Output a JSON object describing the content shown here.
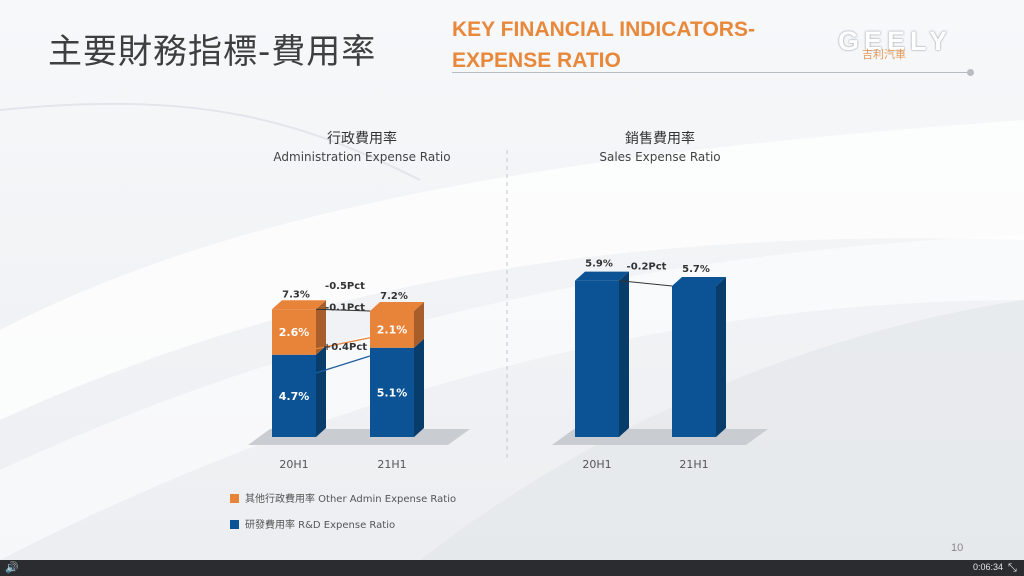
{
  "slide": {
    "title_cn": "主要財務指標-費用率",
    "title_en_line1": "KEY FINANCIAL INDICATORS-",
    "title_en_line2": "EXPENSE RATIO",
    "logo_text": "GEELY",
    "logo_sub": "吉利汽車",
    "page_number": "10"
  },
  "colors": {
    "orange": "#e8833a",
    "blue": "#0b5394",
    "title_orange": "#e8883a"
  },
  "legend": [
    {
      "label": "其他行政費用率 Other Admin Expense Ratio",
      "color": "#e8833a"
    },
    {
      "label": "研發費用率 R&D Expense Ratio",
      "color": "#0b5394"
    }
  ],
  "player": {
    "time": "0:06:34",
    "speaker_icon": "speaker-icon",
    "fullscreen_icon": "fullscreen-icon"
  },
  "chart_data": [
    {
      "type": "bar",
      "stacked": true,
      "title": "行政費用率",
      "subtitle": "Administration Expense Ratio",
      "categories": [
        "20H1",
        "21H1"
      ],
      "series": [
        {
          "name": "研發費用率 R&D Expense Ratio",
          "values": [
            4.7,
            5.1
          ],
          "labels": [
            "4.7%",
            "5.1%"
          ]
        },
        {
          "name": "其他行政費用率 Other Admin Expense Ratio",
          "values": [
            2.6,
            2.1
          ],
          "labels": [
            "2.6%",
            "2.1%"
          ]
        }
      ],
      "totals": [
        7.3,
        7.2
      ],
      "total_labels": [
        "7.3%",
        "7.2%"
      ],
      "change_labels": {
        "total": "-0.1Pct",
        "other": "-0.5Pct",
        "rd": "+0.4Pct"
      },
      "unit": "%"
    },
    {
      "type": "bar",
      "title": "銷售費用率",
      "subtitle": "Sales Expense Ratio",
      "categories": [
        "20H1",
        "21H1"
      ],
      "values": [
        5.9,
        5.7
      ],
      "labels": [
        "5.9%",
        "5.7%"
      ],
      "change_label": "-0.2Pct",
      "unit": "%"
    }
  ]
}
